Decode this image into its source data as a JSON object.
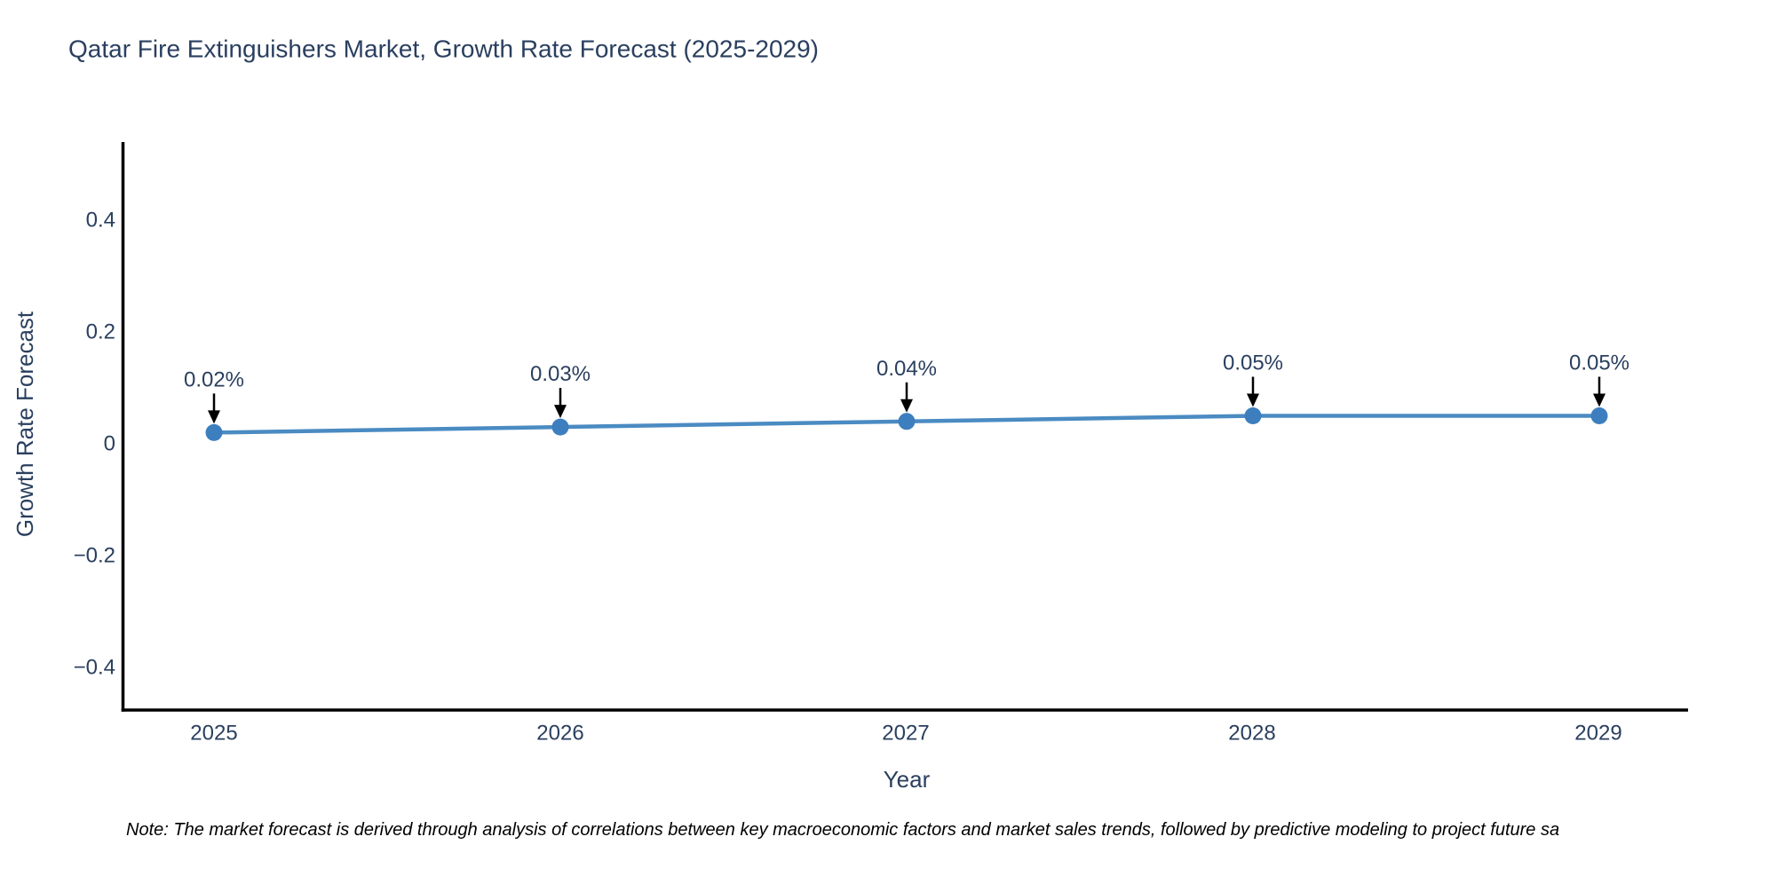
{
  "title": "Qatar Fire Extinguishers Market, Growth Rate Forecast (2025-2029)",
  "footnote": "Note: The market forecast is derived through analysis of correlations between key macroeconomic factors and market sales trends, followed by predictive modeling to project future sa",
  "chart_data": {
    "type": "line",
    "title": "Qatar Fire Extinguishers Market, Growth Rate Forecast (2025-2029)",
    "xlabel": "Year",
    "ylabel": "Growth Rate Forecast",
    "x": [
      2025,
      2026,
      2027,
      2028,
      2029
    ],
    "values": [
      0.02,
      0.03,
      0.04,
      0.05,
      0.05
    ],
    "point_labels": [
      "0.02%",
      "0.03%",
      "0.04%",
      "0.05%",
      "0.05%"
    ],
    "xtick_labels": [
      "2025",
      "2026",
      "2027",
      "2028",
      "2029"
    ],
    "ytick_values": [
      0.4,
      0.2,
      0,
      -0.2,
      -0.4
    ],
    "ytick_labels": [
      "0.4",
      "0.2",
      "0",
      "−0.2",
      "−0.4"
    ],
    "ylim": [
      -0.5,
      0.54
    ],
    "grid": false,
    "legend_position": "none",
    "colors": {
      "line": "#4a8bc2",
      "marker": "#3d7ebf",
      "arrow": "#000000",
      "text": "#2a3f5f",
      "axis": "#000000",
      "background": "#ffffff"
    }
  }
}
